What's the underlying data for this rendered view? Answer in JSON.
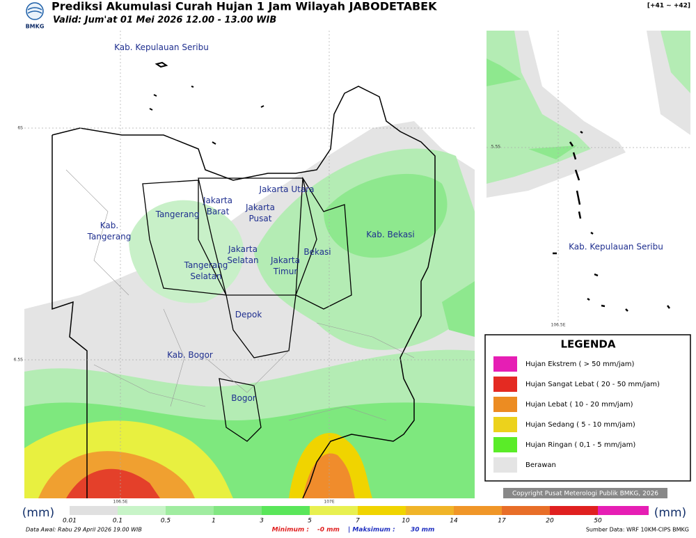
{
  "header": {
    "logo_text": "BMKG",
    "title": "Prediksi Akumulasi Curah Hujan 1 Jam Wilayah JABODETABEK",
    "subtitle": "Valid: Jum'at 01 Mei 2026 12.00 - 13.00 WIB",
    "run_label": "[+41 ~ +42]"
  },
  "map": {
    "regions": [
      [
        "Kab. Kepulauan Seribu"
      ],
      [
        "Jakarta Utara"
      ],
      [
        "Jakarta",
        "Barat"
      ],
      [
        "Jakarta",
        "Pusat"
      ],
      [
        "Tangerang"
      ],
      [
        "Kab.",
        "Tangerang"
      ],
      [
        "Jakarta",
        "Selatan"
      ],
      [
        "Tangerang",
        "Selatan"
      ],
      [
        "Jakarta",
        "Timur"
      ],
      [
        "Bekasi"
      ],
      [
        "Kab. Bekasi"
      ],
      [
        "Depok"
      ],
      [
        "Kab. Bogor"
      ],
      [
        "Bogor"
      ]
    ],
    "lat_labels": [
      "6S",
      "6.5S"
    ],
    "lon_labels": [
      "106.5E",
      "107E"
    ]
  },
  "inset": {
    "region": "Kab. Kepulauan Seribu",
    "lat_label": "5.5S",
    "lon_label": "106.5E"
  },
  "legend": {
    "title": "LEGENDA",
    "items": [
      "Hujan Ekstrem ( > 50 mm/jam)",
      "Hujan Sangat Lebat ( 20 - 50 mm/jam)",
      "Hujan Lebat ( 10 - 20 mm/jam)",
      "Hujan Sedang ( 5 - 10 mm/jam)",
      "Hujan Ringan ( 0,1 - 5 mm/jam)",
      "Berawan"
    ]
  },
  "copyright": "Copyright Pusat Meterologi Publik BMKG, 2026",
  "colorbar": {
    "unit": "(mm)",
    "labels": [
      "0.01",
      "0.1",
      "0.5",
      "1",
      "3",
      "5",
      "7",
      "10",
      "14",
      "17",
      "20",
      "50"
    ]
  },
  "footer": {
    "data_awal": "Data Awal: Rabu 29 April 2026 19.00 WIB",
    "min_label": "Minimum :",
    "min_value": "-0 mm",
    "max_label": "| Maksimum :",
    "max_value": "30 mm",
    "source": "Sumber Data: WRF 10KM-CIPS BMKG"
  }
}
